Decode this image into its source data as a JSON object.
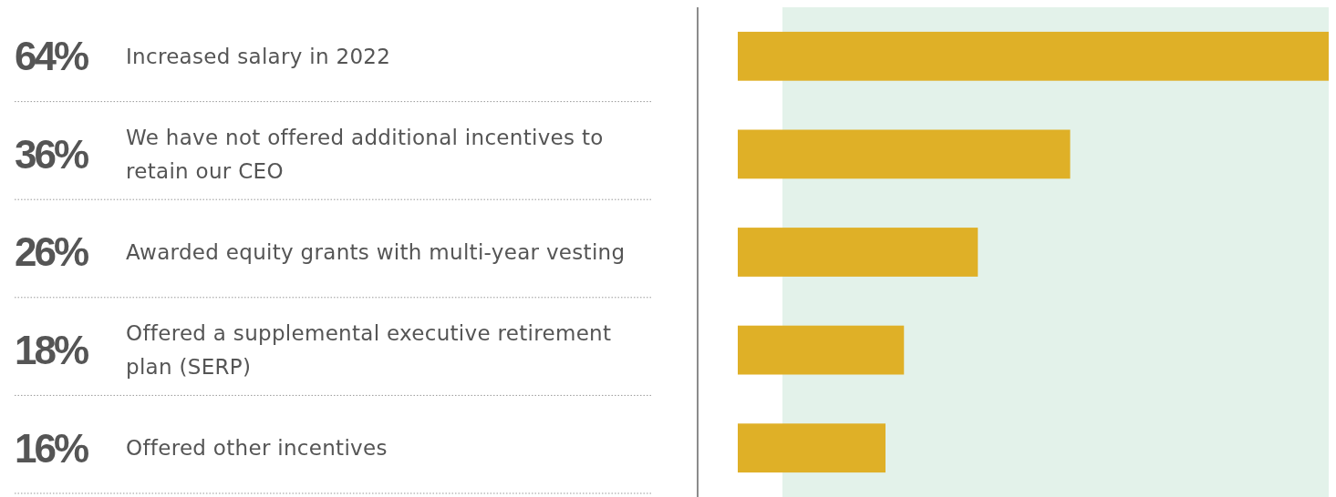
{
  "chart_data": {
    "type": "bar",
    "orientation": "horizontal",
    "categories": [
      "Increased salary in 2022",
      "We have not offered additional incentives to retain our CEO",
      "Awarded equity grants with multi-year vesting",
      "Offered a supplemental executive retirement plan (SERP)",
      "Offered other incentives"
    ],
    "values": [
      64,
      36,
      26,
      18,
      16
    ],
    "color": "#dfb027",
    "data_labels": true,
    "value_labels": [
      "64%",
      "36%",
      "26%",
      "18%",
      "16%"
    ]
  }
}
